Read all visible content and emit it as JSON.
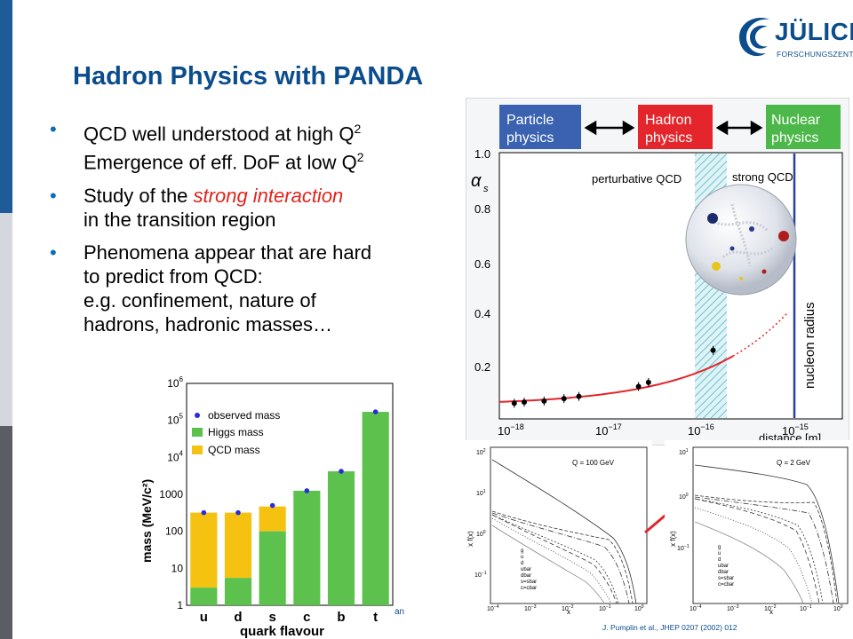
{
  "header": {
    "title": "Hadron Physics with PANDA",
    "logo_word": "JÜLICH",
    "logo_sub": "FORSCHUNGSZENTRUM"
  },
  "bullets": [
    {
      "lines": [
        {
          "pre": "QCD well understood at high Q",
          "sup": "2"
        },
        {
          "pre": "Emergence of eff. DoF at low Q",
          "sup": "2"
        }
      ]
    },
    {
      "lines": [
        {
          "pre": "Study of the ",
          "red": "strong  interaction"
        },
        {
          "pre": "in the transition region"
        }
      ]
    },
    {
      "lines": [
        {
          "pre": "Phenomena appear that are hard"
        },
        {
          "pre": "to predict from QCD:"
        },
        {
          "pre": "e.g. confinement, nature of"
        },
        {
          "pre": "hadrons, hadronic masses…"
        }
      ]
    }
  ],
  "bullet_texts": {
    "b1l1": "QCD well understood at high Q",
    "b1l1sup": "2",
    "b1l2": "Emergence of eff. DoF at low Q",
    "b1l2sup": "2",
    "b2pre": "Study of the ",
    "b2red": "strong  interaction",
    "b2l2": "in the transition region",
    "b3l1": "Phenomena appear that are hard",
    "b3l2": "to predict from QCD:",
    "b3l3": "e.g. confinement, nature of",
    "b3l4": "hadrons, hadronic masses…"
  },
  "alpha_chart": {
    "boxes": [
      {
        "l1": "Particle",
        "l2": "physics",
        "color": "#3a62b0"
      },
      {
        "l1": "Hadron",
        "l2": "physics",
        "color": "#e4252b"
      },
      {
        "l1": "Nuclear",
        "l2": "physics",
        "color": "#4db84a"
      }
    ],
    "ylabel": "α",
    "ylabel_sub": "s",
    "yticks": [
      "1.0",
      "0.8",
      "0.6",
      "0.4",
      "0.2"
    ],
    "xticks": [
      {
        "b": "10",
        "e": "−18"
      },
      {
        "b": "10",
        "e": "−17"
      },
      {
        "b": "10",
        "e": "−16"
      },
      {
        "b": "10",
        "e": "−15"
      }
    ],
    "xlabel": "distance [m]",
    "label_pert": "perturbative QCD",
    "label_strong": "strong QCD",
    "label_nucleon": "nucleon radius",
    "points": [
      {
        "x": -18.0,
        "y": 0.107
      },
      {
        "x": -17.9,
        "y": 0.111
      },
      {
        "x": -17.7,
        "y": 0.115
      },
      {
        "x": -17.5,
        "y": 0.124
      },
      {
        "x": -17.35,
        "y": 0.132
      },
      {
        "x": -16.75,
        "y": 0.168
      },
      {
        "x": -16.65,
        "y": 0.183
      },
      {
        "x": -16.0,
        "y": 0.3
      }
    ]
  },
  "mass_chart": {
    "type": "bar",
    "ylabel": "mass (MeV/c²)",
    "xlabel": "quark flavour",
    "categories": [
      "u",
      "d",
      "s",
      "c",
      "b",
      "t"
    ],
    "legend": [
      "observed mass",
      "Higgs mass",
      "QCD mass"
    ],
    "yticks": [
      "1",
      "10",
      "100",
      "1000"
    ],
    "yticks_exp": [
      {
        "b": "10",
        "e": "4"
      },
      {
        "b": "10",
        "e": "5"
      },
      {
        "b": "10",
        "e": "6"
      }
    ],
    "higgs": [
      3,
      5.5,
      100,
      1250,
      4200,
      170000
    ],
    "total": [
      320,
      320,
      470,
      1250,
      4200,
      170000
    ],
    "observed": [
      320,
      320,
      500,
      1250,
      4200,
      170000
    ],
    "colors": {
      "higgs": "#5dc24d",
      "qcd": "#f5c211",
      "observed": "#2a2adf"
    }
  },
  "pdf_chart_1": {
    "label": "Q = 100 GeV",
    "ylabel": "x f(x)",
    "xlabel": "x",
    "yticks": [
      {
        "b": "10",
        "e": "2"
      },
      {
        "b": "10",
        "e": "1"
      },
      {
        "b": "10",
        "e": "0"
      },
      {
        "b": "10",
        "e": "−1"
      }
    ],
    "xticks": [
      {
        "b": "10",
        "e": "−4"
      },
      {
        "b": "10",
        "e": "−3"
      },
      {
        "b": "10",
        "e": "−2"
      },
      {
        "b": "10",
        "e": "−1"
      },
      {
        "b": "10",
        "e": "0"
      }
    ],
    "legend": [
      "g",
      "u",
      "d",
      "ubar",
      "dbar",
      "s=sbar",
      "c=cbar"
    ]
  },
  "pdf_chart_2": {
    "label": "Q = 2 GeV",
    "ylabel": "x f(x)",
    "xlabel": "x",
    "yticks": [
      {
        "b": "10",
        "e": "1"
      },
      {
        "b": "10",
        "e": "0"
      },
      {
        "b": "10",
        "e": "−1"
      }
    ],
    "xticks": [
      {
        "b": "10",
        "e": "−4"
      },
      {
        "b": "10",
        "e": "−3"
      },
      {
        "b": "10",
        "e": "−2"
      },
      {
        "b": "10",
        "e": "−1"
      },
      {
        "b": "10",
        "e": "0"
      }
    ],
    "legend": [
      "g",
      "u",
      "d",
      "ubar",
      "dbar",
      "s=sbar",
      "c=cbar"
    ]
  },
  "footnote": "J. Pumplin et al., JHEP 0207 (2002) 012",
  "stray": "an",
  "colors": {
    "accent": "#0b4d8c",
    "bullet": "#0b6fb5",
    "red": "#e2231a"
  }
}
